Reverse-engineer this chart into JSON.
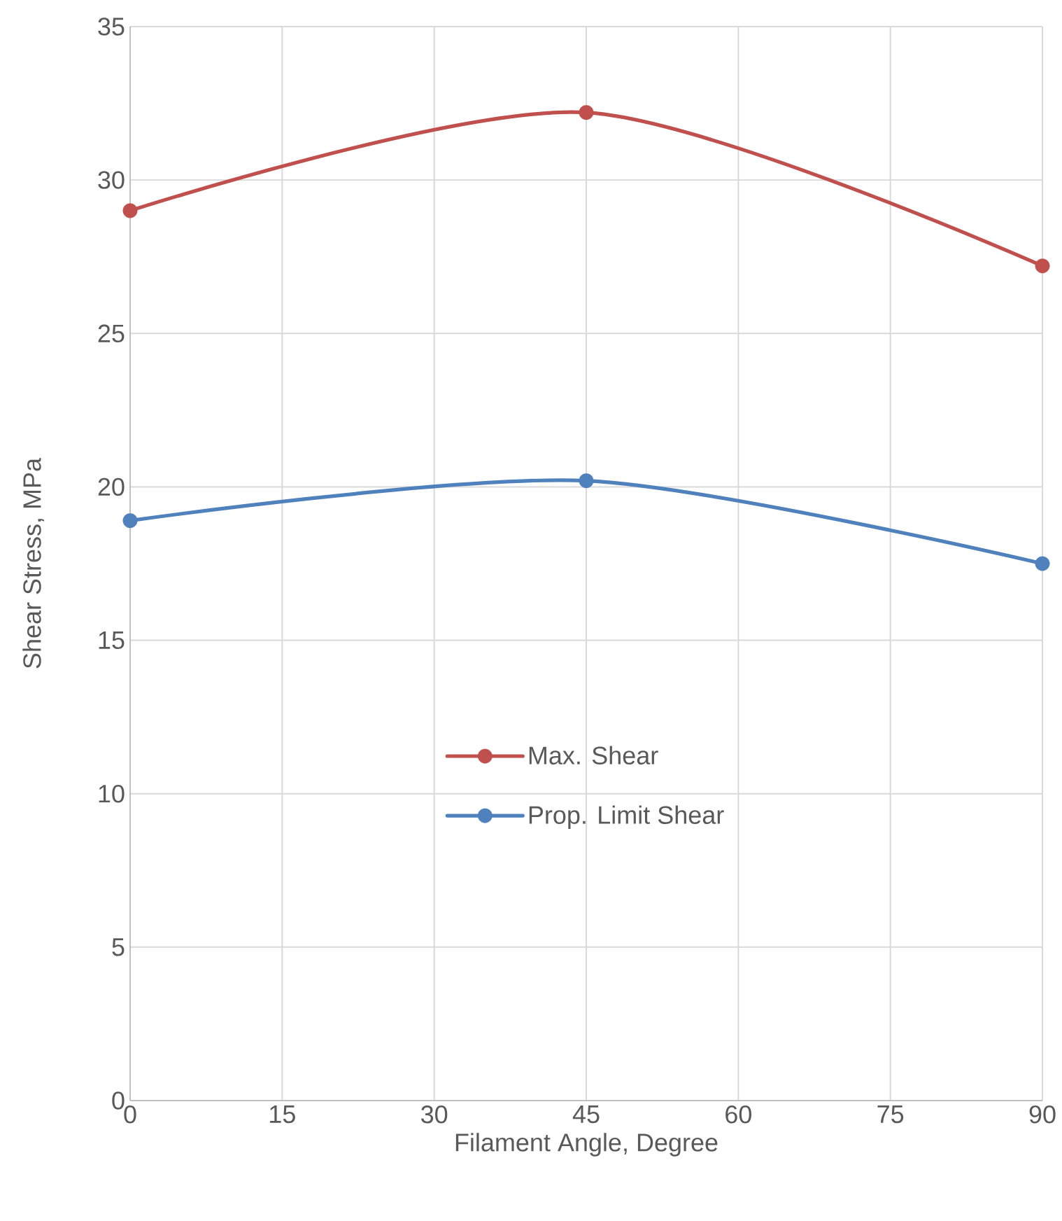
{
  "chart_data": {
    "type": "line",
    "xlabel": "Filament Angle, Degree",
    "ylabel": "Shear Stress, MPa",
    "x": [
      0,
      45,
      90
    ],
    "series": [
      {
        "name": "Max. Shear",
        "color": "#c0504d",
        "values": [
          29.0,
          32.2,
          27.2
        ]
      },
      {
        "name": "Prop. Limit Shear",
        "color": "#4f81bd",
        "values": [
          18.9,
          20.2,
          17.5
        ]
      }
    ],
    "xlim": [
      0,
      90
    ],
    "xticks": [
      0,
      15,
      30,
      45,
      60,
      75,
      90
    ],
    "ylim": [
      0,
      35
    ],
    "yticks": [
      0,
      5,
      10,
      15,
      20,
      25,
      30,
      35
    ],
    "grid": true,
    "legend": "bottom",
    "marker": "circle",
    "line_style": "solid"
  }
}
